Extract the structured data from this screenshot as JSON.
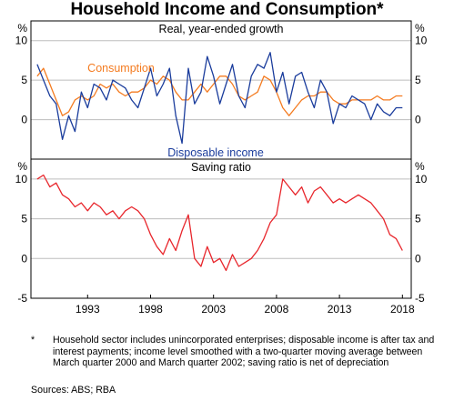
{
  "title": "Household Income and Consumption*",
  "footnote_marker": "*",
  "footnote": "Household sector includes unincorporated enterprises; disposable income is after tax and interest payments; income level smoothed with a two-quarter moving average between March quarter 2000 and March quarter 2002; saving ratio is net of depreciation",
  "sources": "Sources: ABS; RBA",
  "colors": {
    "consumption": "#f47b20",
    "disposable_income": "#1a3c9c",
    "saving_ratio": "#e8262c",
    "grid": "#bdbdbd"
  },
  "chart_data": [
    {
      "type": "line",
      "title": "Real, year-ended growth",
      "xlim": [
        1988.5,
        2018.7
      ],
      "ylim": [
        -5,
        12.5
      ],
      "yticks": [
        -5,
        0,
        5,
        10
      ],
      "ytick_labels": [
        "",
        "0",
        "5",
        "10"
      ],
      "yunit_left": "%",
      "yunit_right": "%",
      "grid": true,
      "series": [
        {
          "name": "Consumption",
          "color": "#f47b20",
          "x": [
            1989.0,
            1989.5,
            1990.0,
            1990.5,
            1991.0,
            1991.5,
            1992.0,
            1992.5,
            1993.0,
            1993.5,
            1994.0,
            1994.5,
            1995.0,
            1995.5,
            1996.0,
            1996.5,
            1997.0,
            1997.5,
            1998.0,
            1998.5,
            1999.0,
            1999.5,
            2000.0,
            2000.5,
            2001.0,
            2001.5,
            2002.0,
            2002.5,
            2003.0,
            2003.5,
            2004.0,
            2004.5,
            2005.0,
            2005.5,
            2006.0,
            2006.5,
            2007.0,
            2007.5,
            2008.0,
            2008.5,
            2009.0,
            2009.5,
            2010.0,
            2010.5,
            2011.0,
            2011.5,
            2012.0,
            2012.5,
            2013.0,
            2013.5,
            2014.0,
            2014.5,
            2015.0,
            2015.5,
            2016.0,
            2016.5,
            2017.0,
            2017.5,
            2018.0
          ],
          "values": [
            5.5,
            6.5,
            4.5,
            2.5,
            0.5,
            1.0,
            2.5,
            3.0,
            2.5,
            3.0,
            4.5,
            4.0,
            4.5,
            3.5,
            3.0,
            3.5,
            3.5,
            4.0,
            5.0,
            4.5,
            5.5,
            5.0,
            3.5,
            2.5,
            2.5,
            3.5,
            4.5,
            3.5,
            4.5,
            5.5,
            5.5,
            4.5,
            3.0,
            2.5,
            3.0,
            3.5,
            5.5,
            5.0,
            3.5,
            1.5,
            0.5,
            1.5,
            2.5,
            3.0,
            3.0,
            3.5,
            3.5,
            2.5,
            2.0,
            2.0,
            2.5,
            2.5,
            2.5,
            2.5,
            3.0,
            2.5,
            2.5,
            3.0,
            3.0
          ]
        },
        {
          "name": "Disposable income",
          "color": "#1a3c9c",
          "x": [
            1989.0,
            1989.5,
            1990.0,
            1990.5,
            1991.0,
            1991.5,
            1992.0,
            1992.5,
            1993.0,
            1993.5,
            1994.0,
            1994.5,
            1995.0,
            1995.5,
            1996.0,
            1996.5,
            1997.0,
            1997.5,
            1998.0,
            1998.5,
            1999.0,
            1999.5,
            2000.0,
            2000.5,
            2001.0,
            2001.5,
            2002.0,
            2002.5,
            2003.0,
            2003.5,
            2004.0,
            2004.5,
            2005.0,
            2005.5,
            2006.0,
            2006.5,
            2007.0,
            2007.5,
            2008.0,
            2008.5,
            2009.0,
            2009.5,
            2010.0,
            2010.5,
            2011.0,
            2011.5,
            2012.0,
            2012.5,
            2013.0,
            2013.5,
            2014.0,
            2014.5,
            2015.0,
            2015.5,
            2016.0,
            2016.5,
            2017.0,
            2017.5,
            2018.0
          ],
          "values": [
            7.0,
            5.0,
            3.0,
            2.0,
            -2.5,
            0.5,
            -1.5,
            3.5,
            1.5,
            4.5,
            4.0,
            2.5,
            5.0,
            4.5,
            4.0,
            2.5,
            1.5,
            4.0,
            6.5,
            3.0,
            4.5,
            6.5,
            0.5,
            -3.0,
            6.5,
            2.0,
            3.5,
            8.0,
            5.5,
            2.0,
            4.5,
            7.0,
            3.0,
            1.5,
            5.5,
            7.0,
            6.5,
            8.5,
            3.5,
            6.0,
            2.0,
            5.5,
            6.0,
            3.5,
            1.5,
            5.0,
            3.5,
            -0.5,
            2.0,
            1.5,
            3.0,
            2.5,
            2.0,
            0.0,
            2.0,
            1.0,
            0.5,
            1.5,
            1.5
          ]
        }
      ]
    },
    {
      "type": "line",
      "title": "Saving ratio",
      "xlim": [
        1988.5,
        2018.7
      ],
      "ylim": [
        -5,
        12.5
      ],
      "yticks": [
        -5,
        0,
        5,
        10
      ],
      "ytick_labels": [
        "-5",
        "0",
        "5",
        "10"
      ],
      "yunit_left": "%",
      "yunit_right": "%",
      "xticks": [
        1993,
        1998,
        2003,
        2008,
        2013,
        2018
      ],
      "xtick_labels": [
        "1993",
        "1998",
        "2003",
        "2008",
        "2013",
        "2018"
      ],
      "grid": true,
      "series": [
        {
          "color": "#e8262c",
          "x": [
            1989.0,
            1989.5,
            1990.0,
            1990.5,
            1991.0,
            1991.5,
            1992.0,
            1992.5,
            1993.0,
            1993.5,
            1994.0,
            1994.5,
            1995.0,
            1995.5,
            1996.0,
            1996.5,
            1997.0,
            1997.5,
            1998.0,
            1998.5,
            1999.0,
            1999.5,
            2000.0,
            2000.5,
            2001.0,
            2001.5,
            2002.0,
            2002.5,
            2003.0,
            2003.5,
            2004.0,
            2004.5,
            2005.0,
            2005.5,
            2006.0,
            2006.5,
            2007.0,
            2007.5,
            2008.0,
            2008.5,
            2009.0,
            2009.5,
            2010.0,
            2010.5,
            2011.0,
            2011.5,
            2012.0,
            2012.5,
            2013.0,
            2013.5,
            2014.0,
            2014.5,
            2015.0,
            2015.5,
            2016.0,
            2016.5,
            2017.0,
            2017.5,
            2018.0
          ],
          "values": [
            10.0,
            10.5,
            9.0,
            9.5,
            8.0,
            7.5,
            6.5,
            7.0,
            6.0,
            7.0,
            6.5,
            5.5,
            6.0,
            5.0,
            6.0,
            6.5,
            6.0,
            5.0,
            3.0,
            1.5,
            0.5,
            2.5,
            1.0,
            3.5,
            5.5,
            0.0,
            -1.0,
            1.5,
            -0.5,
            0.0,
            -1.5,
            0.5,
            -1.0,
            -0.5,
            0.0,
            1.0,
            2.5,
            4.5,
            5.5,
            10.0,
            9.0,
            8.0,
            9.0,
            7.0,
            8.5,
            9.0,
            8.0,
            7.0,
            7.5,
            7.0,
            7.5,
            8.0,
            7.5,
            7.0,
            6.0,
            5.0,
            3.0,
            2.5,
            1.0
          ]
        }
      ]
    }
  ]
}
